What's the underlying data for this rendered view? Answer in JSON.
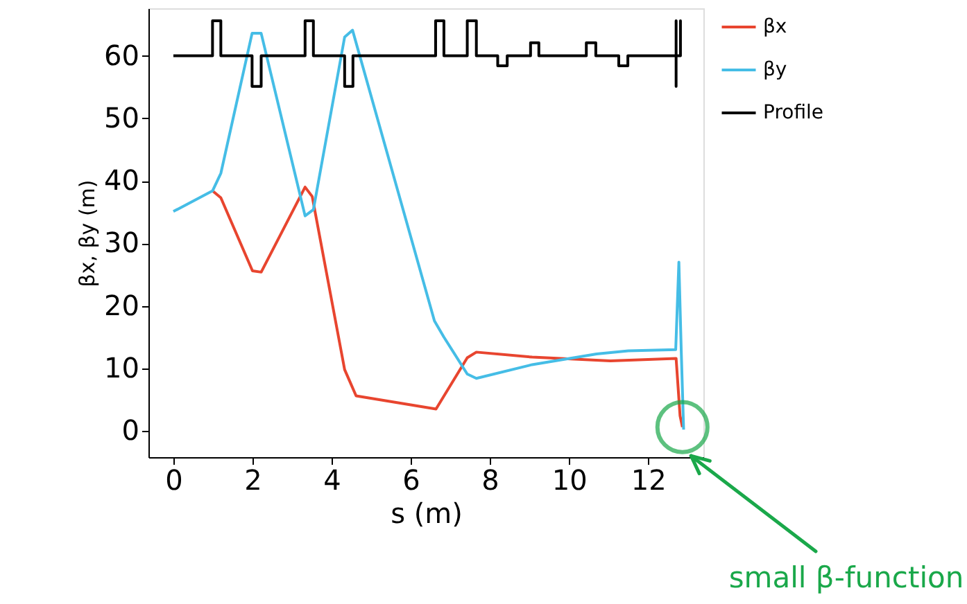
{
  "chart_data": {
    "type": "line",
    "xlabel": "s (m)",
    "ylabel": "βx, βy (m)",
    "xlim": [
      -0.63,
      13.4
    ],
    "ylim": [
      -4.2,
      67.6
    ],
    "xticks": [
      0,
      2,
      4,
      6,
      8,
      10,
      12
    ],
    "yticks": [
      0,
      10,
      20,
      30,
      40,
      50,
      60
    ],
    "grid": false,
    "legend": "right",
    "line_style": "solid",
    "marker": "none",
    "series": [
      {
        "name": "βx",
        "color": "#e8452f",
        "x": [
          0.99,
          1.2,
          2.0,
          2.22,
          3.33,
          3.51,
          4.33,
          4.62,
          6.64,
          7.43,
          7.66,
          9.07,
          11.05,
          12.71,
          12.81,
          12.87
        ],
        "values": [
          38.4,
          37.3,
          25.6,
          25.4,
          39.0,
          37.5,
          9.8,
          5.6,
          3.5,
          11.7,
          12.6,
          11.8,
          11.2,
          11.6,
          2.4,
          0.6
        ]
      },
      {
        "name": "βy",
        "color": "#45bde6",
        "x": [
          0,
          0.99,
          1.2,
          1.99,
          2.22,
          3.33,
          3.54,
          4.33,
          4.53,
          6.6,
          6.84,
          7.43,
          7.66,
          9.07,
          10.7,
          11.5,
          12.7,
          12.78,
          12.84,
          12.9
        ],
        "values": [
          35.1,
          38.4,
          41.2,
          63.6,
          63.6,
          34.4,
          35.4,
          63.0,
          64.1,
          17.6,
          15.0,
          9.1,
          8.4,
          10.6,
          12.3,
          12.8,
          13.0,
          27.0,
          12.8,
          0.2
        ]
      },
      {
        "name": "Profile",
        "color": "#000000",
        "x": [
          0,
          0.99,
          0.99,
          1.2,
          1.2,
          1.99,
          1.99,
          2.22,
          2.22,
          3.33,
          3.33,
          3.54,
          3.54,
          4.33,
          4.33,
          4.54,
          4.54,
          6.63,
          6.63,
          6.84,
          6.84,
          7.43,
          7.43,
          7.66,
          7.66,
          8.2,
          8.2,
          8.44,
          8.44,
          9.03,
          9.03,
          9.24,
          9.24,
          10.44,
          10.44,
          10.68,
          10.68,
          11.26,
          11.26,
          11.49,
          11.49,
          12.71,
          12.71,
          12.71,
          12.71,
          12.82,
          12.82,
          12.82
        ],
        "values": [
          60,
          60,
          65.6,
          65.6,
          60,
          60,
          55.1,
          55.1,
          60,
          60,
          65.6,
          65.6,
          60,
          60,
          55.1,
          55.1,
          60,
          60,
          65.6,
          65.6,
          60,
          60,
          65.6,
          65.6,
          60,
          60,
          58.4,
          58.4,
          60,
          60,
          62.1,
          62.1,
          60,
          60,
          62.1,
          62.1,
          60,
          60,
          58.4,
          58.4,
          60,
          60,
          65.6,
          55.1,
          60,
          60,
          65.6,
          60
        ]
      }
    ],
    "annotations": [
      {
        "text": "small β-function",
        "x": 13.09,
        "y": -4.0
      }
    ]
  }
}
